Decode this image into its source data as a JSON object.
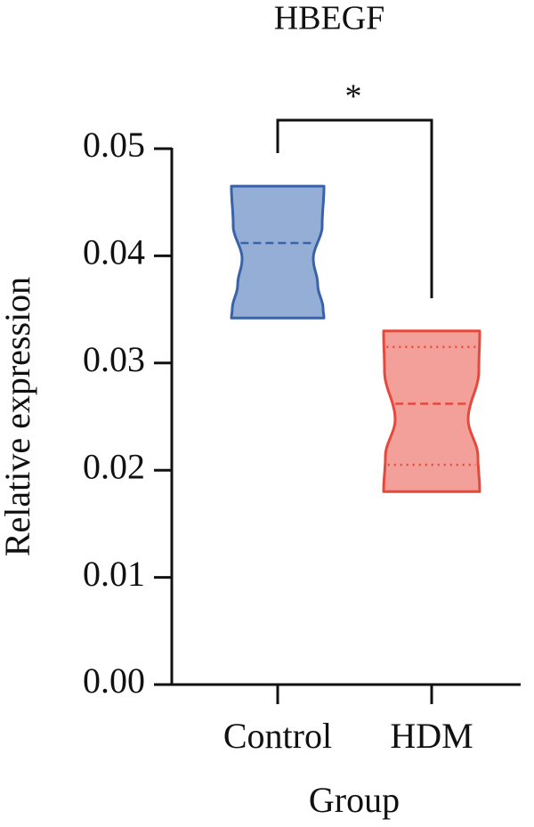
{
  "chart_data": {
    "type": "violin",
    "title": "HBEGF",
    "xlabel": "Group",
    "ylabel": "Relative expression",
    "categories": [
      "Control",
      "HDM"
    ],
    "violins": [
      {
        "min": 0.0342,
        "max": 0.0465,
        "median": 0.0412,
        "color": "#3a62a8",
        "fill": "#94aed6"
      },
      {
        "min": 0.018,
        "max": 0.033,
        "median": 0.0262,
        "q1": 0.0205,
        "q3": 0.0315,
        "color": "#e5493c",
        "fill": "#f4a09a"
      }
    ],
    "ylim": [
      0,
      0.05
    ],
    "yticks": [
      {
        "value": 0,
        "label": "0.00"
      },
      0.01,
      0.02,
      0.03,
      0.04,
      0.05
    ],
    "annotation": "*"
  }
}
